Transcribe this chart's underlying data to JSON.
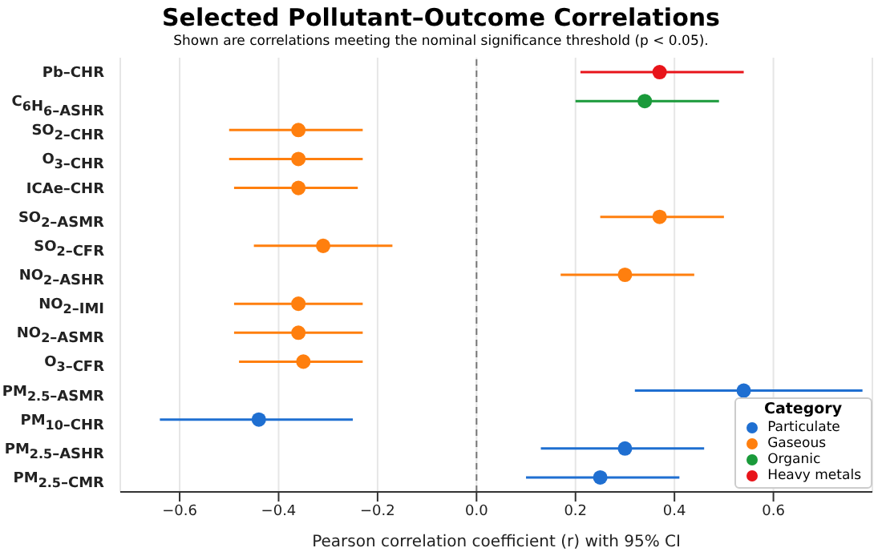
{
  "chart_data": {
    "type": "scatter",
    "title": "Selected Pollutant–Outcome Correlations",
    "subtitle": "Shown are correlations meeting the nominal significance threshold (p < 0.05).",
    "xlabel": "Pearson correlation coefficient (r) with 95% CI",
    "orientation": "horizontal",
    "categories": [
      "Pb–CHR",
      "C$_{6}$H$_{6}$–ASHR",
      "SO$_{2}$–CHR",
      "O$_{3}$–CHR",
      "ICAe–CHR",
      "SO$_{2}$–ASMR",
      "SO$_{2}$–CFR",
      "NO$_{2}$–ASHR",
      "NO$_{2}$–IMI",
      "NO$_{2}$–ASMR",
      "O$_{3}$–CFR",
      "PM$_{2.5}$–ASMR",
      "PM$_{10}$–CHR",
      "PM$_{2.5}$–ASHR",
      "PM$_{2.5}$–CMR"
    ],
    "series": [
      {
        "name": "Particulate",
        "color": "#1f6fd1",
        "values": [
          null,
          null,
          null,
          null,
          null,
          null,
          null,
          null,
          null,
          null,
          null,
          0.54,
          -0.44,
          0.3,
          0.25
        ],
        "errors": [
          null,
          null,
          null,
          null,
          null,
          null,
          null,
          null,
          null,
          null,
          null,
          [
            0.32,
            0.78
          ],
          [
            -0.64,
            -0.25
          ],
          [
            0.13,
            0.46
          ],
          [
            0.1,
            0.41
          ]
        ]
      },
      {
        "name": "Gaseous",
        "color": "#ff7f0e",
        "values": [
          null,
          null,
          -0.36,
          -0.36,
          -0.36,
          0.37,
          -0.31,
          0.3,
          -0.36,
          -0.36,
          -0.35,
          null,
          null,
          null,
          null
        ],
        "errors": [
          null,
          null,
          [
            -0.5,
            -0.23
          ],
          [
            -0.5,
            -0.23
          ],
          [
            -0.49,
            -0.24
          ],
          [
            0.25,
            0.5
          ],
          [
            -0.45,
            -0.17
          ],
          [
            0.17,
            0.44
          ],
          [
            -0.49,
            -0.23
          ],
          [
            -0.49,
            -0.23
          ],
          [
            -0.48,
            -0.23
          ],
          null,
          null,
          null,
          null
        ]
      },
      {
        "name": "Organic",
        "color": "#1a9a3a",
        "values": [
          null,
          0.34,
          null,
          null,
          null,
          null,
          null,
          null,
          null,
          null,
          null,
          null,
          null,
          null,
          null
        ],
        "errors": [
          null,
          [
            0.2,
            0.49
          ],
          null,
          null,
          null,
          null,
          null,
          null,
          null,
          null,
          null,
          null,
          null,
          null,
          null
        ]
      },
      {
        "name": "Heavy metals",
        "color": "#e8141a",
        "values": [
          0.37,
          null,
          null,
          null,
          null,
          null,
          null,
          null,
          null,
          null,
          null,
          null,
          null,
          null,
          null
        ],
        "errors": [
          [
            0.21,
            0.54
          ],
          null,
          null,
          null,
          null,
          null,
          null,
          null,
          null,
          null,
          null,
          null,
          null,
          null,
          null
        ]
      }
    ],
    "xlim": [
      -0.72,
      0.8
    ],
    "xticks": [
      {
        "value": -0.6,
        "label": "−0.6"
      },
      {
        "value": -0.4,
        "label": "−0.4"
      },
      {
        "value": -0.2,
        "label": "−0.2"
      },
      {
        "value": 0,
        "label": "0.0"
      },
      {
        "value": 0.2,
        "label": "0.2"
      },
      {
        "value": 0.4,
        "label": "0.4"
      },
      {
        "value": 0.6,
        "label": "0.6"
      }
    ],
    "ref_lines": [
      {
        "axis": "x",
        "value": 0,
        "color": "#777777",
        "line_style": "dashed"
      }
    ],
    "grid": "x",
    "legend": "bottom right",
    "legend_title": "Category",
    "marker": "circle"
  }
}
